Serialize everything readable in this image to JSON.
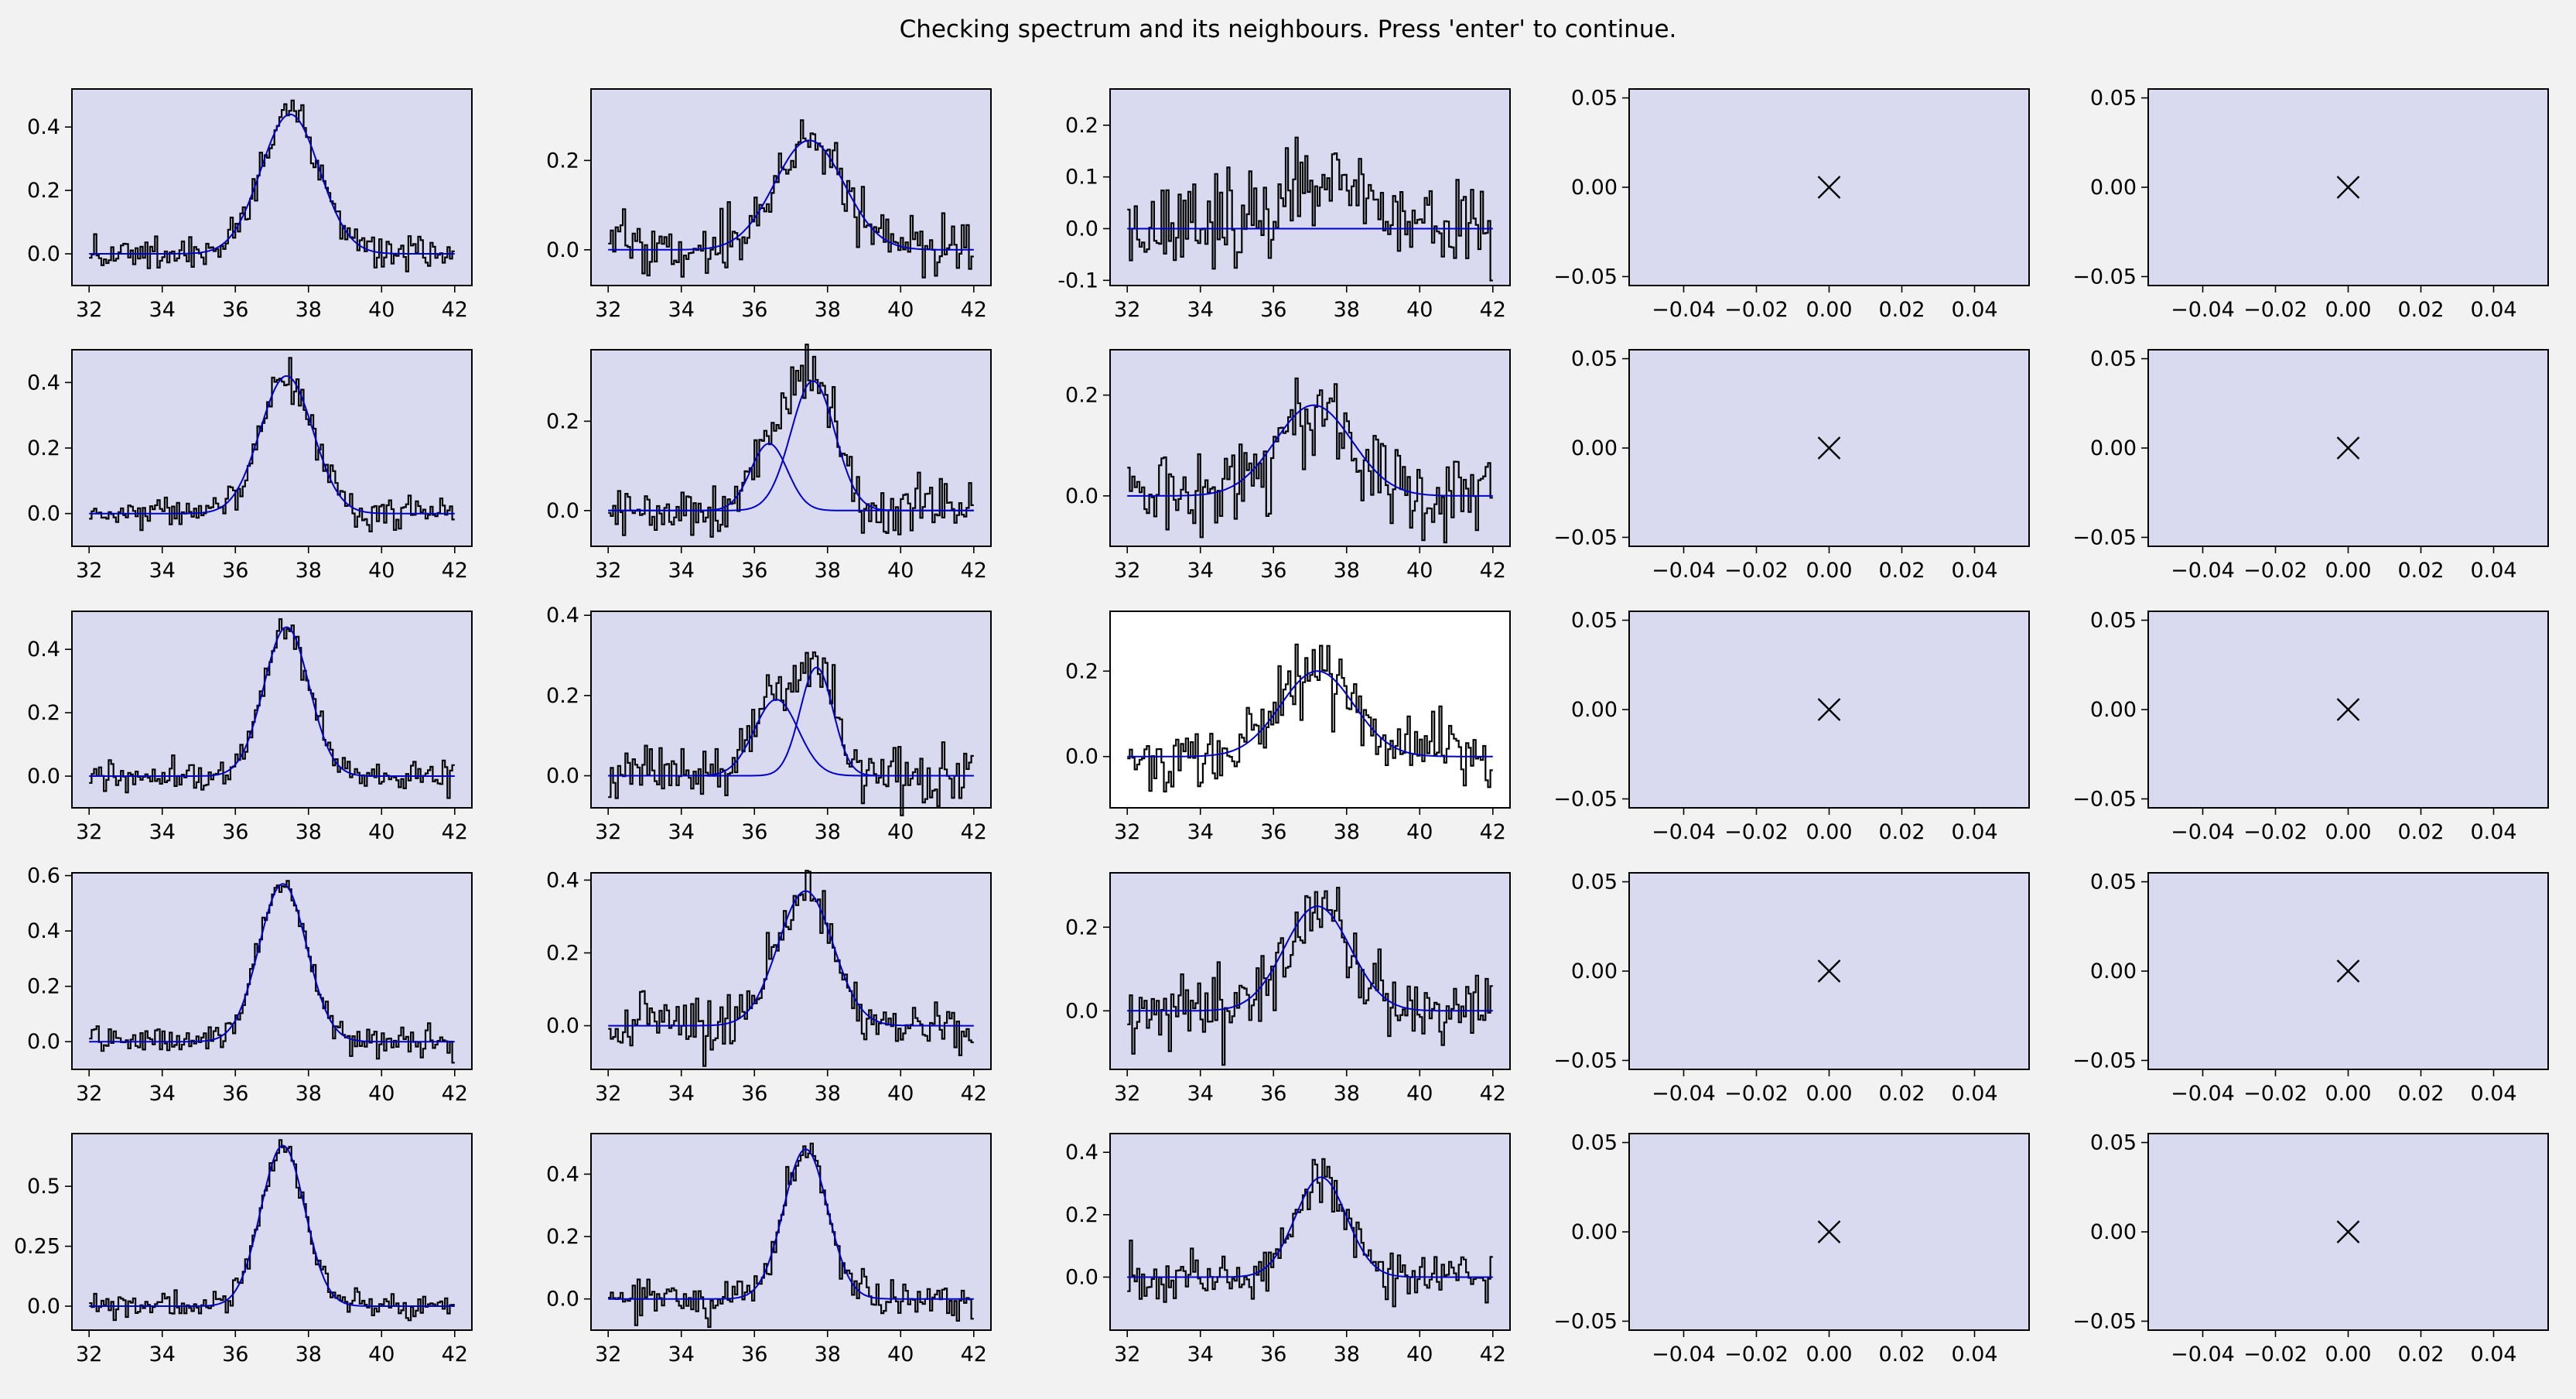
{
  "window": {
    "title": "Checking spectrum and its neighbours. Press 'enter' to continue."
  },
  "colors": {
    "figure_background": "#f2f2f2",
    "panel_background": "#d9d9f0",
    "current_panel_background": "#ffffff",
    "spectrum_color": "#000000",
    "fit_color": "#0000cc"
  },
  "chart_data": {
    "type": "line",
    "layout": "5x5 grid",
    "current_panel": {
      "row": 2,
      "col": 2
    },
    "spectrum_xlim": [
      32,
      42
    ],
    "spectrum_xticks": [
      32,
      34,
      36,
      38,
      40,
      42
    ],
    "grid": false,
    "panels": [
      [
        {
          "type": "spectrum",
          "yticks": [
            0.0,
            0.2,
            0.4
          ],
          "ylim": [
            -0.1,
            0.52
          ],
          "noise": 0.025,
          "seed": 11,
          "components": [
            {
              "amp": 0.44,
              "mu": 37.5,
              "sigma": 0.8
            }
          ]
        },
        {
          "type": "spectrum",
          "yticks": [
            0.0,
            0.2
          ],
          "ylim": [
            -0.08,
            0.36
          ],
          "noise": 0.035,
          "seed": 12,
          "components": [
            {
              "amp": 0.245,
              "mu": 37.5,
              "sigma": 0.95
            }
          ]
        },
        {
          "type": "spectrum",
          "yticks": [
            -0.1,
            0.0,
            0.1,
            0.2
          ],
          "ylim": [
            -0.11,
            0.27
          ],
          "noise": 0.045,
          "seed": 13,
          "components": [
            {
              "amp": 0.1,
              "mu": 37.3,
              "sigma": 1.1,
              "observed_only": true
            }
          ]
        },
        {
          "type": "empty",
          "marker": "x"
        },
        {
          "type": "empty",
          "marker": "x"
        }
      ],
      [
        {
          "type": "spectrum",
          "yticks": [
            0.0,
            0.2,
            0.4
          ],
          "ylim": [
            -0.1,
            0.5
          ],
          "noise": 0.025,
          "seed": 21,
          "components": [
            {
              "amp": 0.42,
              "mu": 37.4,
              "sigma": 0.72
            }
          ]
        },
        {
          "type": "spectrum",
          "yticks": [
            0.0,
            0.2
          ],
          "ylim": [
            -0.08,
            0.36
          ],
          "noise": 0.035,
          "seed": 22,
          "components": [
            {
              "amp": 0.15,
              "mu": 36.4,
              "sigma": 0.5
            },
            {
              "amp": 0.29,
              "mu": 37.6,
              "sigma": 0.6
            }
          ]
        },
        {
          "type": "spectrum",
          "yticks": [
            0.0,
            0.2
          ],
          "ylim": [
            -0.1,
            0.29
          ],
          "noise": 0.045,
          "seed": 23,
          "components": [
            {
              "amp": 0.18,
              "mu": 37.1,
              "sigma": 1.05
            }
          ]
        },
        {
          "type": "empty",
          "marker": "x"
        },
        {
          "type": "empty",
          "marker": "x"
        }
      ],
      [
        {
          "type": "spectrum",
          "yticks": [
            0.0,
            0.2,
            0.4
          ],
          "ylim": [
            -0.1,
            0.52
          ],
          "noise": 0.025,
          "seed": 31,
          "components": [
            {
              "amp": 0.47,
              "mu": 37.4,
              "sigma": 0.62
            }
          ]
        },
        {
          "type": "spectrum",
          "yticks": [
            0.0,
            0.2,
            0.4
          ],
          "ylim": [
            -0.08,
            0.41
          ],
          "noise": 0.035,
          "seed": 32,
          "components": [
            {
              "amp": 0.19,
              "mu": 36.6,
              "sigma": 0.6
            },
            {
              "amp": 0.27,
              "mu": 37.7,
              "sigma": 0.45
            }
          ]
        },
        {
          "type": "spectrum",
          "yticks": [
            0.0,
            0.2
          ],
          "ylim": [
            -0.12,
            0.34
          ],
          "noise": 0.045,
          "seed": 33,
          "components": [
            {
              "amp": 0.2,
              "mu": 37.2,
              "sigma": 1.0
            }
          ]
        },
        {
          "type": "empty",
          "marker": "x"
        },
        {
          "type": "empty",
          "marker": "x"
        }
      ],
      [
        {
          "type": "spectrum",
          "yticks": [
            0.0,
            0.2,
            0.4,
            0.6
          ],
          "ylim": [
            -0.1,
            0.61
          ],
          "noise": 0.025,
          "seed": 41,
          "components": [
            {
              "amp": 0.57,
              "mu": 37.3,
              "sigma": 0.65
            }
          ]
        },
        {
          "type": "spectrum",
          "yticks": [
            0.0,
            0.2,
            0.4
          ],
          "ylim": [
            -0.12,
            0.42
          ],
          "noise": 0.035,
          "seed": 42,
          "components": [
            {
              "amp": 0.37,
              "mu": 37.4,
              "sigma": 0.75
            }
          ]
        },
        {
          "type": "spectrum",
          "yticks": [
            0.0,
            0.2
          ],
          "ylim": [
            -0.14,
            0.33
          ],
          "noise": 0.045,
          "seed": 43,
          "components": [
            {
              "amp": 0.25,
              "mu": 37.2,
              "sigma": 0.9
            }
          ]
        },
        {
          "type": "empty",
          "marker": "x"
        },
        {
          "type": "empty",
          "marker": "x"
        }
      ],
      [
        {
          "type": "spectrum",
          "yticks": [
            0.0,
            0.25,
            0.5
          ],
          "ylim": [
            -0.1,
            0.72
          ],
          "noise": 0.025,
          "seed": 51,
          "components": [
            {
              "amp": 0.67,
              "mu": 37.3,
              "sigma": 0.6
            }
          ]
        },
        {
          "type": "spectrum",
          "yticks": [
            0.0,
            0.2,
            0.4
          ],
          "ylim": [
            -0.1,
            0.53
          ],
          "noise": 0.03,
          "seed": 52,
          "components": [
            {
              "amp": 0.48,
              "mu": 37.4,
              "sigma": 0.6
            }
          ]
        },
        {
          "type": "spectrum",
          "yticks": [
            0.0,
            0.2,
            0.4
          ],
          "ylim": [
            -0.17,
            0.46
          ],
          "noise": 0.04,
          "seed": 53,
          "components": [
            {
              "amp": 0.32,
              "mu": 37.3,
              "sigma": 0.7
            }
          ]
        },
        {
          "type": "empty",
          "marker": "x"
        },
        {
          "type": "empty",
          "marker": "x"
        }
      ]
    ],
    "empty_panel": {
      "xticks": [
        "−0.04",
        "−0.02",
        "0.00",
        "0.02",
        "0.04"
      ],
      "yticks": [
        "0.05",
        "0.00",
        "−0.05"
      ],
      "xlim": [
        -0.055,
        0.055
      ],
      "ylim": [
        -0.055,
        0.055
      ]
    }
  }
}
